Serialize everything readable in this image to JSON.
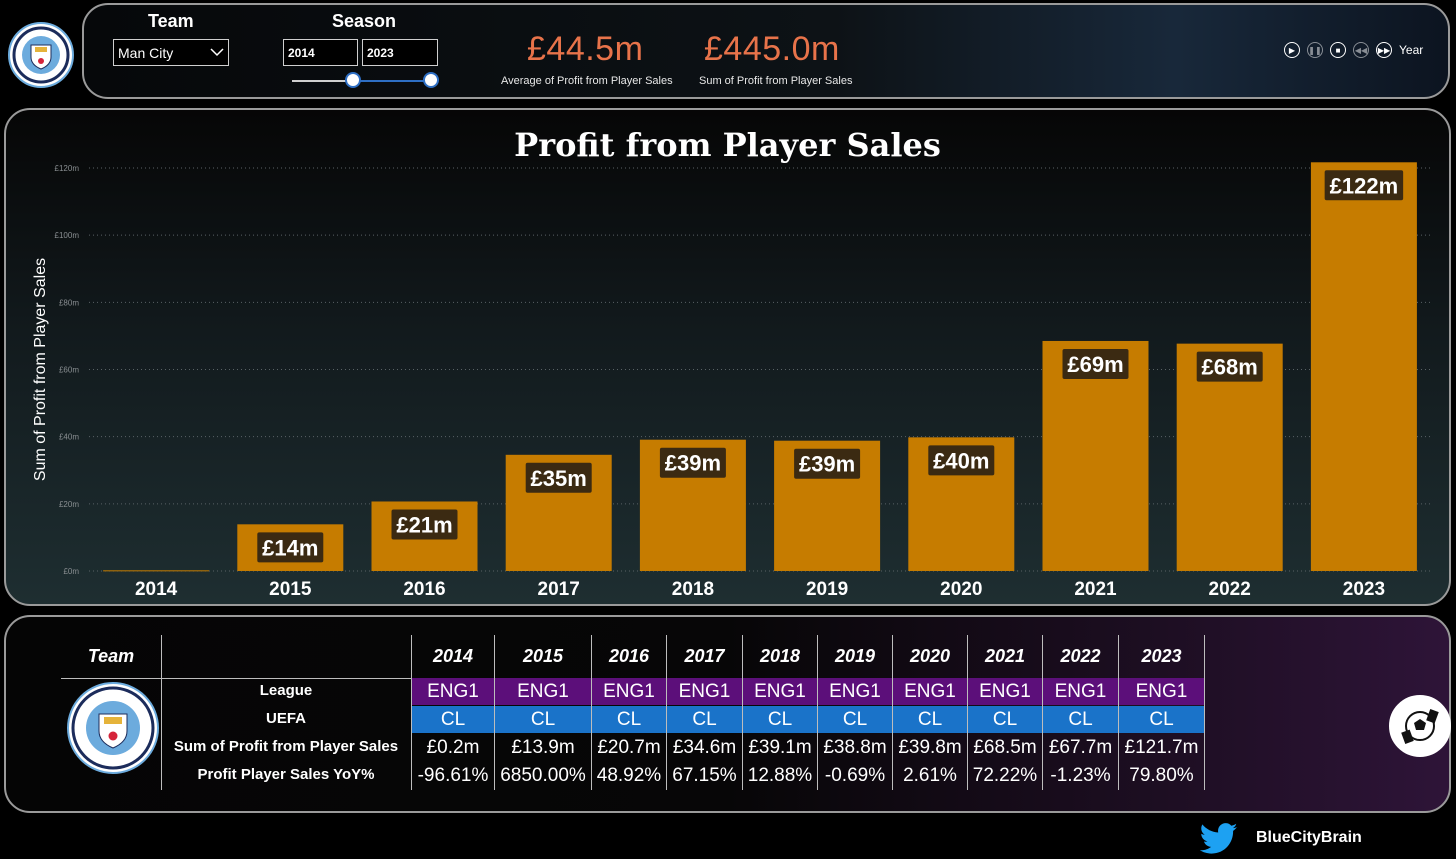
{
  "filters": {
    "team_label": "Team",
    "team_value": "Man City",
    "season_label": "Season",
    "season_start": "2014",
    "season_end": "2023"
  },
  "kpis": [
    {
      "value": "£44.5m",
      "label": "Average of Profit from Player Sales"
    },
    {
      "value": "£445.0m",
      "label": "Sum of Profit from Player Sales"
    }
  ],
  "play_axis": {
    "label": "Year"
  },
  "logo_text": {
    "top": "MANCHESTER",
    "bottom": "CITY",
    "left": "18",
    "right": "94"
  },
  "colors": {
    "bar": "#c67c00",
    "kpi": "#e8734a",
    "league": "#5c0f7a",
    "uefa": "#1a73c9",
    "club": "#6cabdd"
  },
  "chart_data": {
    "type": "bar",
    "title": "Profit from Player Sales",
    "ylabel": "Sum of Profit from Player Sales",
    "xlabel": "",
    "categories": [
      "2014",
      "2015",
      "2016",
      "2017",
      "2018",
      "2019",
      "2020",
      "2021",
      "2022",
      "2023"
    ],
    "values": [
      0.2,
      13.9,
      20.7,
      34.6,
      39.1,
      38.8,
      39.8,
      68.5,
      67.7,
      121.7
    ],
    "data_labels": [
      "",
      "£14m",
      "£21m",
      "£35m",
      "£39m",
      "£39m",
      "£40m",
      "£69m",
      "£68m",
      "£122m"
    ],
    "yticks": [
      0,
      20,
      40,
      60,
      80,
      100,
      120
    ],
    "ytick_labels": [
      "£0m",
      "£20m",
      "£40m",
      "£60m",
      "£80m",
      "£100m",
      "£120m"
    ],
    "ylim": [
      0,
      120
    ],
    "grid": true
  },
  "table": {
    "team_header": "Team",
    "row_labels": [
      "League",
      "UEFA",
      "Sum of Profit from Player Sales",
      "Profit Player Sales YoY%"
    ],
    "years": [
      "2014",
      "2015",
      "2016",
      "2017",
      "2018",
      "2019",
      "2020",
      "2021",
      "2022",
      "2023"
    ],
    "league": [
      "ENG1",
      "ENG1",
      "ENG1",
      "ENG1",
      "ENG1",
      "ENG1",
      "ENG1",
      "ENG1",
      "ENG1",
      "ENG1"
    ],
    "uefa": [
      "CL",
      "CL",
      "CL",
      "CL",
      "CL",
      "CL",
      "CL",
      "CL",
      "CL",
      "CL"
    ],
    "profit": [
      "£0.2m",
      "£13.9m",
      "£20.7m",
      "£34.6m",
      "£39.1m",
      "£38.8m",
      "£39.8m",
      "£68.5m",
      "£67.7m",
      "£121.7m"
    ],
    "yoy": [
      "-96.61%",
      "6850.00%",
      "48.92%",
      "67.15%",
      "12.88%",
      "-0.69%",
      "2.61%",
      "72.22%",
      "-1.23%",
      "79.80%"
    ]
  },
  "footer": {
    "handle": "BlueCityBrain"
  }
}
